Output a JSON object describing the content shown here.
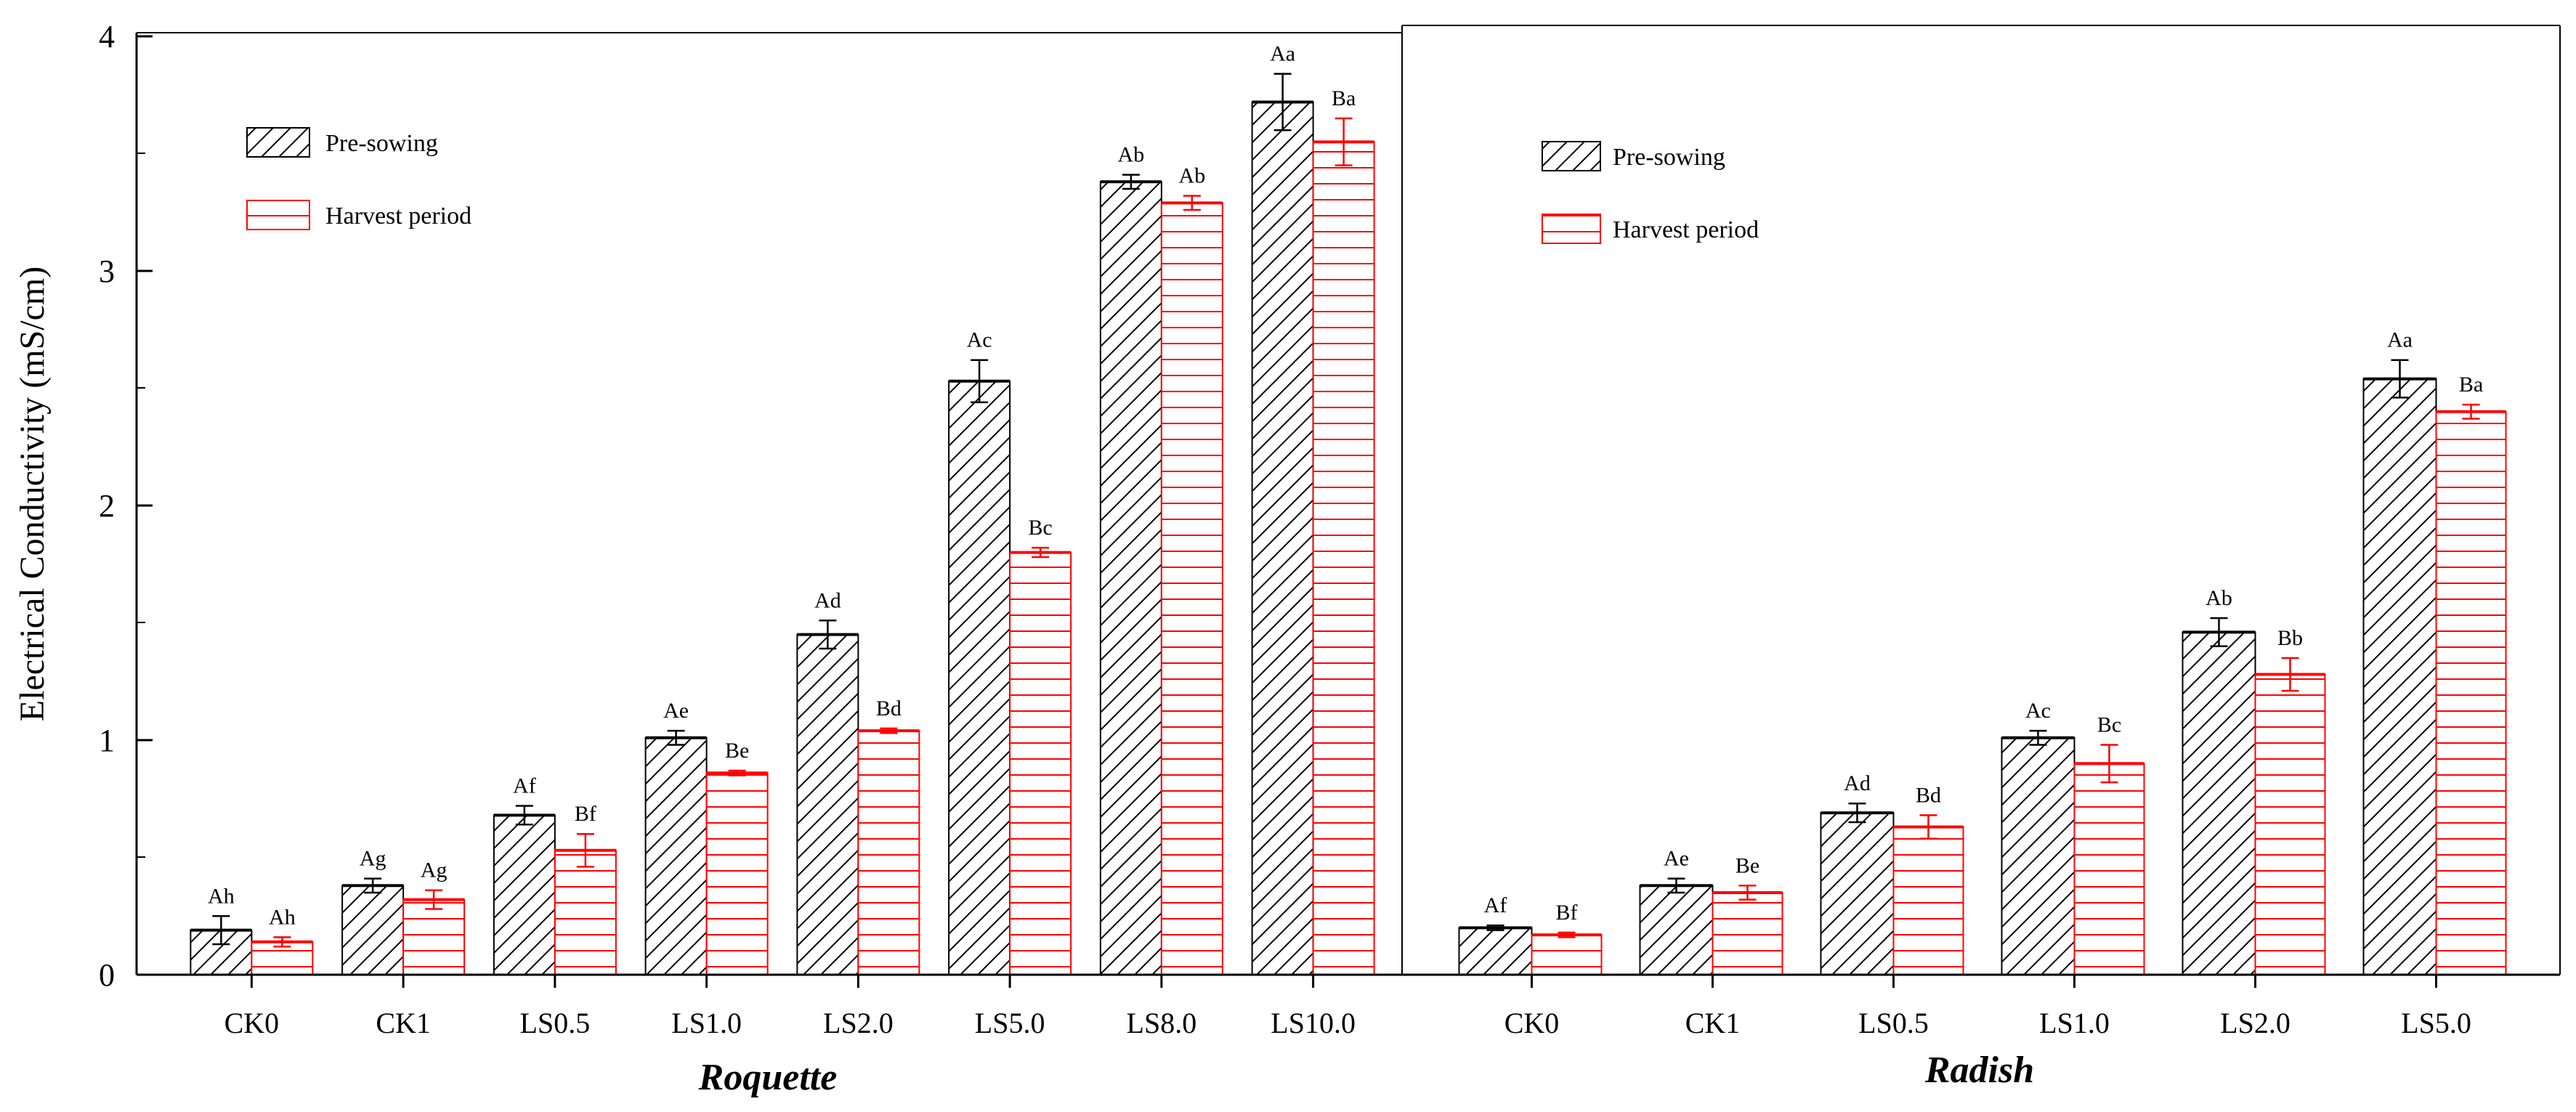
{
  "colors": {
    "pre_sowing": "#000000",
    "harvest": "#ff0000",
    "axis": "#000000",
    "background": "#ffffff"
  },
  "ylabel": "Electrical Conductivity (mS/cm)",
  "y_ticks": [
    "0",
    "1",
    "2",
    "3",
    "4"
  ],
  "legend": {
    "pre_sowing": "Pre-sowing",
    "harvest": "Harvest period"
  },
  "chart_data": [
    {
      "type": "bar",
      "title": "Roquette",
      "ylabel": "Electrical Conductivity (mS/cm)",
      "ylim": [
        0,
        4
      ],
      "legend_position": "top-left",
      "categories": [
        "CK0",
        "CK1",
        "LS0.5",
        "LS1.0",
        "LS2.0",
        "LS5.0",
        "LS8.0",
        "LS10.0"
      ],
      "series": [
        {
          "name": "Pre-sowing",
          "pattern": "diagonal-hatch",
          "values": [
            0.19,
            0.38,
            0.68,
            1.01,
            1.45,
            2.53,
            3.38,
            3.72
          ],
          "errors": [
            0.06,
            0.03,
            0.04,
            0.03,
            0.06,
            0.09,
            0.03,
            0.12
          ],
          "labels": [
            "Ah",
            "Ag",
            "Af",
            "Ae",
            "Ad",
            "Ac",
            "Ab",
            "Aa"
          ]
        },
        {
          "name": "Harvest period",
          "pattern": "horizontal-hatch",
          "values": [
            0.14,
            0.32,
            0.53,
            0.86,
            1.04,
            1.8,
            3.29,
            3.55
          ],
          "errors": [
            0.02,
            0.04,
            0.07,
            0.01,
            0.01,
            0.02,
            0.03,
            0.1
          ],
          "labels": [
            "Ah",
            "Ag",
            "Bf",
            "Be",
            "Bd",
            "Bc",
            "Ab",
            "Ba"
          ]
        }
      ]
    },
    {
      "type": "bar",
      "title": "Radish",
      "ylim": [
        0,
        4
      ],
      "legend_position": "top-left",
      "categories": [
        "CK0",
        "CK1",
        "LS0.5",
        "LS1.0",
        "LS2.0",
        "LS5.0"
      ],
      "series": [
        {
          "name": "Pre-sowing",
          "pattern": "diagonal-hatch",
          "values": [
            0.2,
            0.38,
            0.69,
            1.01,
            1.46,
            2.54
          ],
          "errors": [
            0.01,
            0.03,
            0.04,
            0.03,
            0.06,
            0.08
          ],
          "labels": [
            "Af",
            "Ae",
            "Ad",
            "Ac",
            "Ab",
            "Aa"
          ]
        },
        {
          "name": "Harvest period",
          "pattern": "horizontal-hatch",
          "values": [
            0.17,
            0.35,
            0.63,
            0.9,
            1.28,
            2.4
          ],
          "errors": [
            0.01,
            0.03,
            0.05,
            0.08,
            0.07,
            0.03
          ],
          "labels": [
            "Bf",
            "Be",
            "Bd",
            "Bc",
            "Bb",
            "Ba"
          ]
        }
      ]
    }
  ]
}
